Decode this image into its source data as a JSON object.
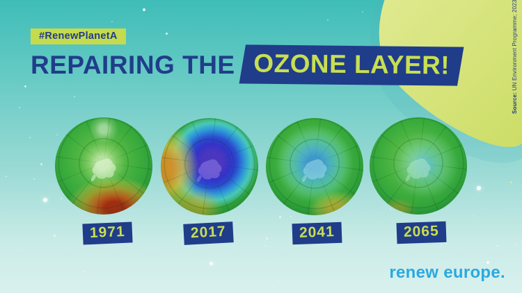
{
  "badge": {
    "label": "#RenewPlanetA"
  },
  "title": {
    "prefix": "REPAIRING THE",
    "highlight": "OZONE LAYER!"
  },
  "source_note": {
    "label_bold": "Source:",
    "label_rest": " UN Environment Programme; 2023"
  },
  "timeline": {
    "globes": [
      {
        "year": "1971",
        "state": "high ozone, red-orange dense band at lower edge"
      },
      {
        "year": "2017",
        "state": "large deep blue-purple ozone hole over Antarctica"
      },
      {
        "year": "2041",
        "state": "shrinking light-blue ozone hole"
      },
      {
        "year": "2065",
        "state": "nearly recovered, faint cyan patch"
      }
    ]
  },
  "logo": {
    "text": "renew europe."
  },
  "colors": {
    "navy": "#203D8A",
    "lime": "#C4DB4E",
    "blob_lime": "#D8E57E",
    "logo_blue": "#29A9E1",
    "background_teal_top": "#3FBDB8",
    "background_teal_bottom": "#D9F1EE"
  }
}
